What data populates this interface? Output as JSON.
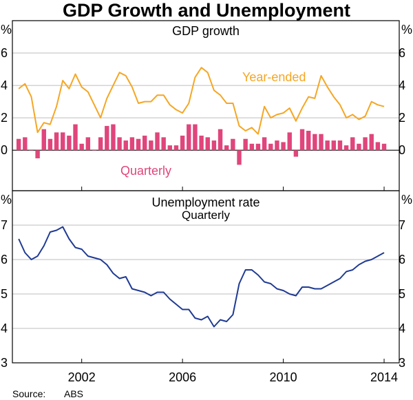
{
  "title": "GDP Growth and Unemployment",
  "source_label": "Source:",
  "source_value": "ABS",
  "colors": {
    "year_ended": "#F5A623",
    "quarterly": "#E0457B",
    "unemployment": "#1F3A93",
    "grid": "#BDBDBD",
    "frame": "#000000"
  },
  "chart_data": [
    {
      "type": "bar+line",
      "title": "GDP growth",
      "y_unit_left": "%",
      "y_unit_right": "%",
      "ylim": [
        -2.5,
        8
      ],
      "yticks": [
        0,
        2,
        4,
        6
      ],
      "tick_labels": [
        "0",
        "2",
        "4",
        "6"
      ],
      "x_start": 1999.5,
      "x_step": 0.25,
      "series": [
        {
          "name": "Year-ended",
          "type": "line",
          "values": [
            3.8,
            4.1,
            3.3,
            1.1,
            1.7,
            1.6,
            2.7,
            4.3,
            3.8,
            4.7,
            3.9,
            3.6,
            2.8,
            2.0,
            3.2,
            4.0,
            4.8,
            4.6,
            3.9,
            2.9,
            3.0,
            3.0,
            3.4,
            3.4,
            2.8,
            2.5,
            2.3,
            2.9,
            4.5,
            5.1,
            4.8,
            3.7,
            3.4,
            2.9,
            2.9,
            1.5,
            1.2,
            1.4,
            1.0,
            2.7,
            2.0,
            2.2,
            2.3,
            2.6,
            1.8,
            2.6,
            3.3,
            3.2,
            4.6,
            3.9,
            3.3,
            2.8,
            2.0,
            2.2,
            1.9,
            2.1,
            3.0,
            2.8,
            2.7
          ]
        },
        {
          "name": "Quarterly",
          "type": "bar",
          "values": [
            0.7,
            0.8,
            0.0,
            -0.5,
            1.3,
            0.7,
            1.1,
            1.1,
            0.9,
            1.6,
            0.4,
            0.8,
            0.0,
            0.8,
            1.5,
            1.6,
            0.8,
            0.6,
            0.8,
            0.7,
            0.9,
            0.6,
            1.1,
            0.8,
            0.3,
            0.3,
            0.9,
            1.6,
            1.6,
            0.9,
            0.8,
            0.6,
            1.3,
            0.3,
            0.7,
            -0.9,
            0.7,
            0.4,
            0.4,
            0.8,
            0.4,
            0.6,
            0.5,
            1.1,
            -0.4,
            1.3,
            1.2,
            1.0,
            1.0,
            0.6,
            0.6,
            0.6,
            0.3,
            0.8,
            0.4,
            0.8,
            1.0,
            0.5,
            0.4
          ]
        }
      ],
      "annotations": [
        "Year-ended",
        "Quarterly"
      ]
    },
    {
      "type": "line",
      "title": "Unemployment rate",
      "subtitle": "Quarterly",
      "y_unit_left": "%",
      "y_unit_right": "%",
      "ylim": [
        3,
        8
      ],
      "yticks": [
        3,
        4,
        5,
        6,
        7
      ],
      "tick_labels": [
        "3",
        "4",
        "5",
        "6",
        "7"
      ],
      "x_start": 1999.5,
      "x_step": 0.25,
      "series": [
        {
          "name": "Unemployment rate",
          "values": [
            6.6,
            6.2,
            6.0,
            6.1,
            6.4,
            6.8,
            6.85,
            6.95,
            6.6,
            6.35,
            6.3,
            6.1,
            6.05,
            6.0,
            5.85,
            5.6,
            5.45,
            5.5,
            5.15,
            5.1,
            5.05,
            4.95,
            5.05,
            5.05,
            4.85,
            4.7,
            4.55,
            4.55,
            4.3,
            4.25,
            4.35,
            4.05,
            4.25,
            4.2,
            4.4,
            5.3,
            5.7,
            5.7,
            5.55,
            5.35,
            5.3,
            5.15,
            5.1,
            5.0,
            4.95,
            5.2,
            5.2,
            5.15,
            5.15,
            5.25,
            5.35,
            5.45,
            5.65,
            5.7,
            5.85,
            5.95,
            6.0,
            6.1,
            6.2
          ]
        }
      ]
    }
  ],
  "x_axis": {
    "range": [
      1999.25,
      2014.6
    ],
    "ticks": [
      2002,
      2006,
      2010,
      2014
    ],
    "tick_labels": [
      "2002",
      "2006",
      "2010",
      "2014"
    ]
  }
}
